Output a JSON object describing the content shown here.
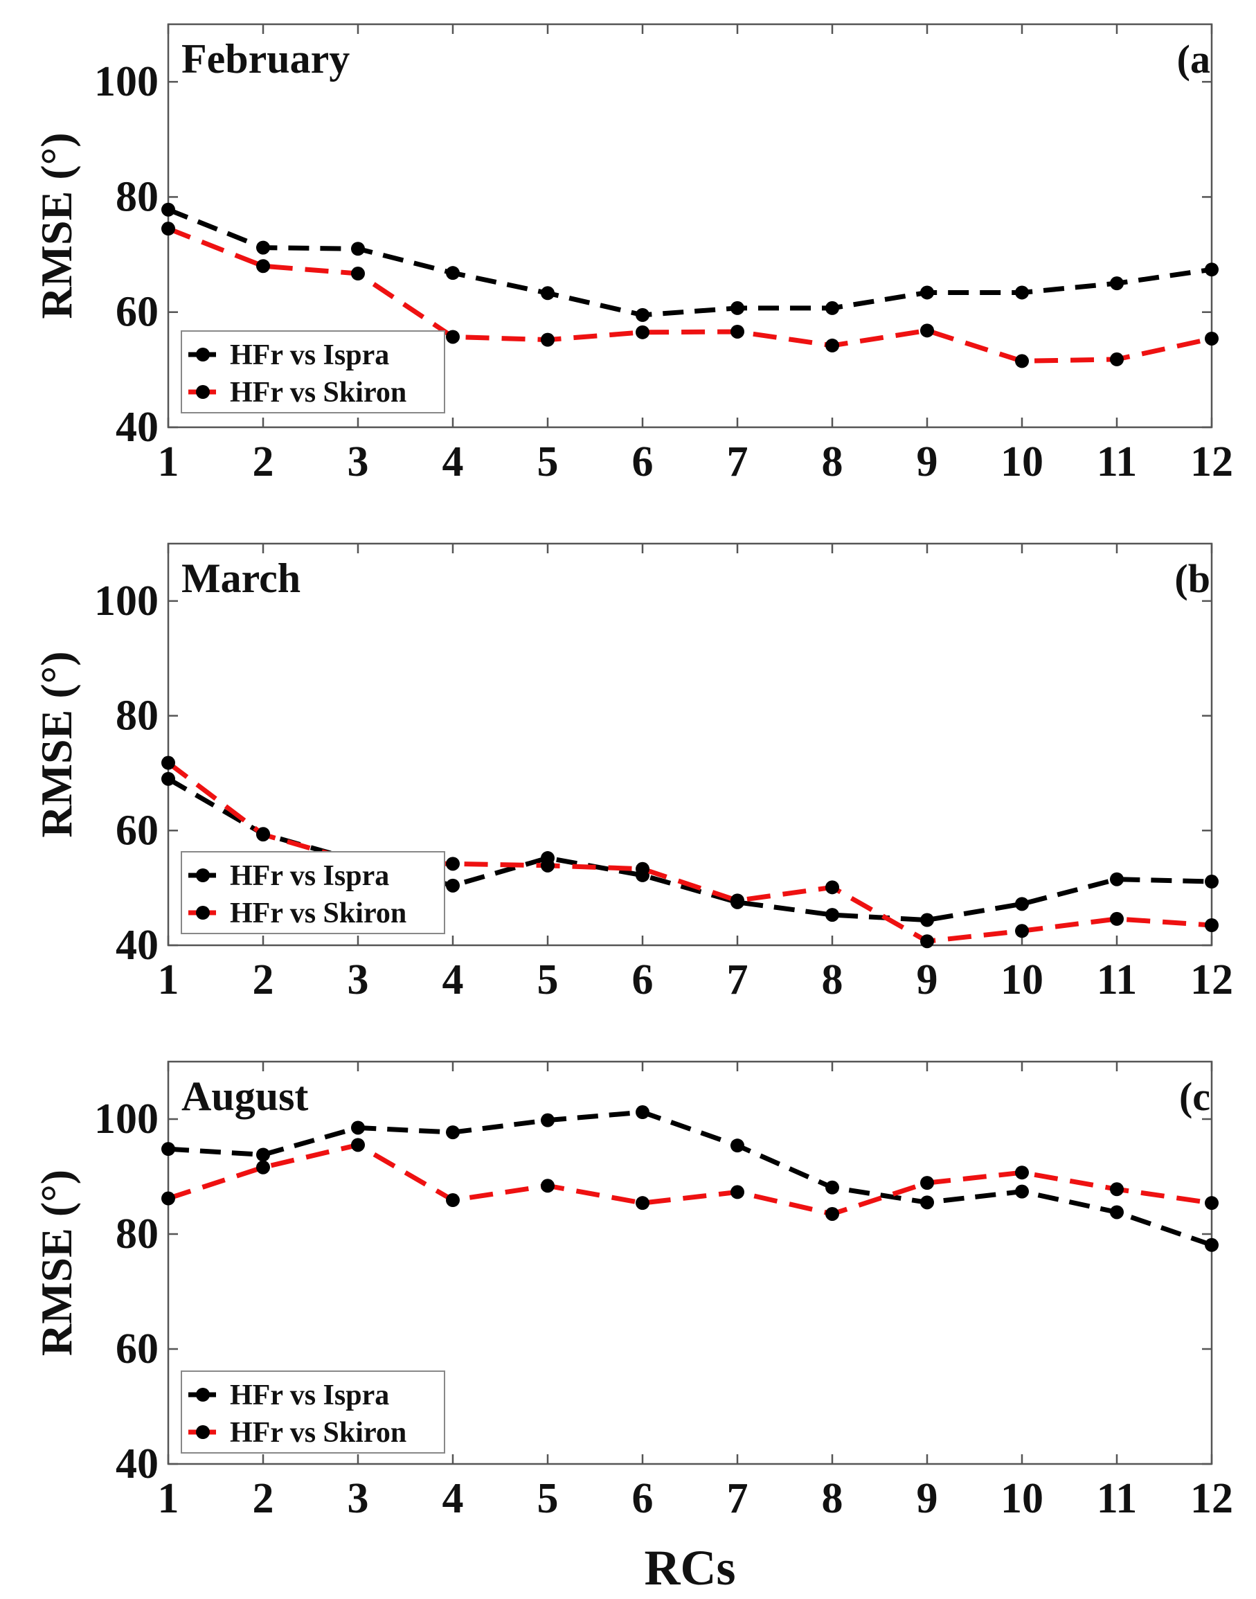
{
  "colors": {
    "ispra": "#000000",
    "skiron": "#ee1111",
    "axes": "#555555",
    "text": "#111111"
  },
  "legend_labels": [
    "HFr vs Ispra",
    "HFr vs Skiron"
  ],
  "xlabel": "RCs",
  "chart_data": [
    {
      "type": "line",
      "title": "February",
      "panel_tag": "(a",
      "ylabel": "RMSE (°)",
      "xlabel": "",
      "ylim": [
        40,
        110
      ],
      "yticks": [
        40,
        60,
        80,
        100
      ],
      "xlim": [
        1,
        12
      ],
      "x": [
        1,
        2,
        3,
        4,
        5,
        6,
        7,
        8,
        9,
        10,
        11,
        12
      ],
      "legend": "bottom-left",
      "series": [
        {
          "name": "HFr vs Ispra",
          "values": [
            77.8,
            71.2,
            71,
            66.8,
            63.3,
            59.5,
            60.7,
            60.7,
            63.4,
            63.4,
            65,
            67.4
          ]
        },
        {
          "name": "HFr vs Skiron",
          "values": [
            74.5,
            68,
            66.7,
            55.7,
            55.2,
            56.5,
            56.6,
            54.2,
            56.8,
            51.5,
            51.8,
            55.4
          ]
        }
      ]
    },
    {
      "type": "line",
      "title": "March",
      "panel_tag": "(b",
      "ylabel": "RMSE (°)",
      "xlabel": "",
      "ylim": [
        40,
        110
      ],
      "yticks": [
        40,
        60,
        80,
        100
      ],
      "xlim": [
        1,
        12
      ],
      "x": [
        1,
        2,
        3,
        4,
        5,
        6,
        7,
        8,
        9,
        10,
        11,
        12
      ],
      "legend": "bottom-left",
      "series": [
        {
          "name": "HFr vs Ispra",
          "values": [
            69,
            59.4,
            54.7,
            50.4,
            55.2,
            52.2,
            47.5,
            45.3,
            44.4,
            47.2,
            51.5,
            51.1
          ]
        },
        {
          "name": "HFr vs Skiron",
          "values": [
            71.8,
            59.3,
            54.5,
            54.2,
            53.9,
            53.3,
            47.8,
            50.1,
            40.7,
            42.5,
            44.6,
            43.5
          ]
        }
      ]
    },
    {
      "type": "line",
      "title": "August",
      "panel_tag": "(c",
      "ylabel": "RMSE (°)",
      "xlabel": "RCs",
      "ylim": [
        40,
        110
      ],
      "yticks": [
        40,
        60,
        80,
        100
      ],
      "xlim": [
        1,
        12
      ],
      "x": [
        1,
        2,
        3,
        4,
        5,
        6,
        7,
        8,
        9,
        10,
        11,
        12
      ],
      "legend": "bottom-left",
      "series": [
        {
          "name": "HFr vs Ispra",
          "values": [
            94.8,
            93.8,
            98.5,
            97.7,
            99.8,
            101.2,
            95.4,
            88.1,
            85.5,
            87.4,
            83.8,
            78.1
          ]
        },
        {
          "name": "HFr vs Skiron",
          "values": [
            86.2,
            91.6,
            95.5,
            85.9,
            88.4,
            85.4,
            87.3,
            83.5,
            88.9,
            90.7,
            87.8,
            85.4
          ]
        }
      ]
    }
  ]
}
